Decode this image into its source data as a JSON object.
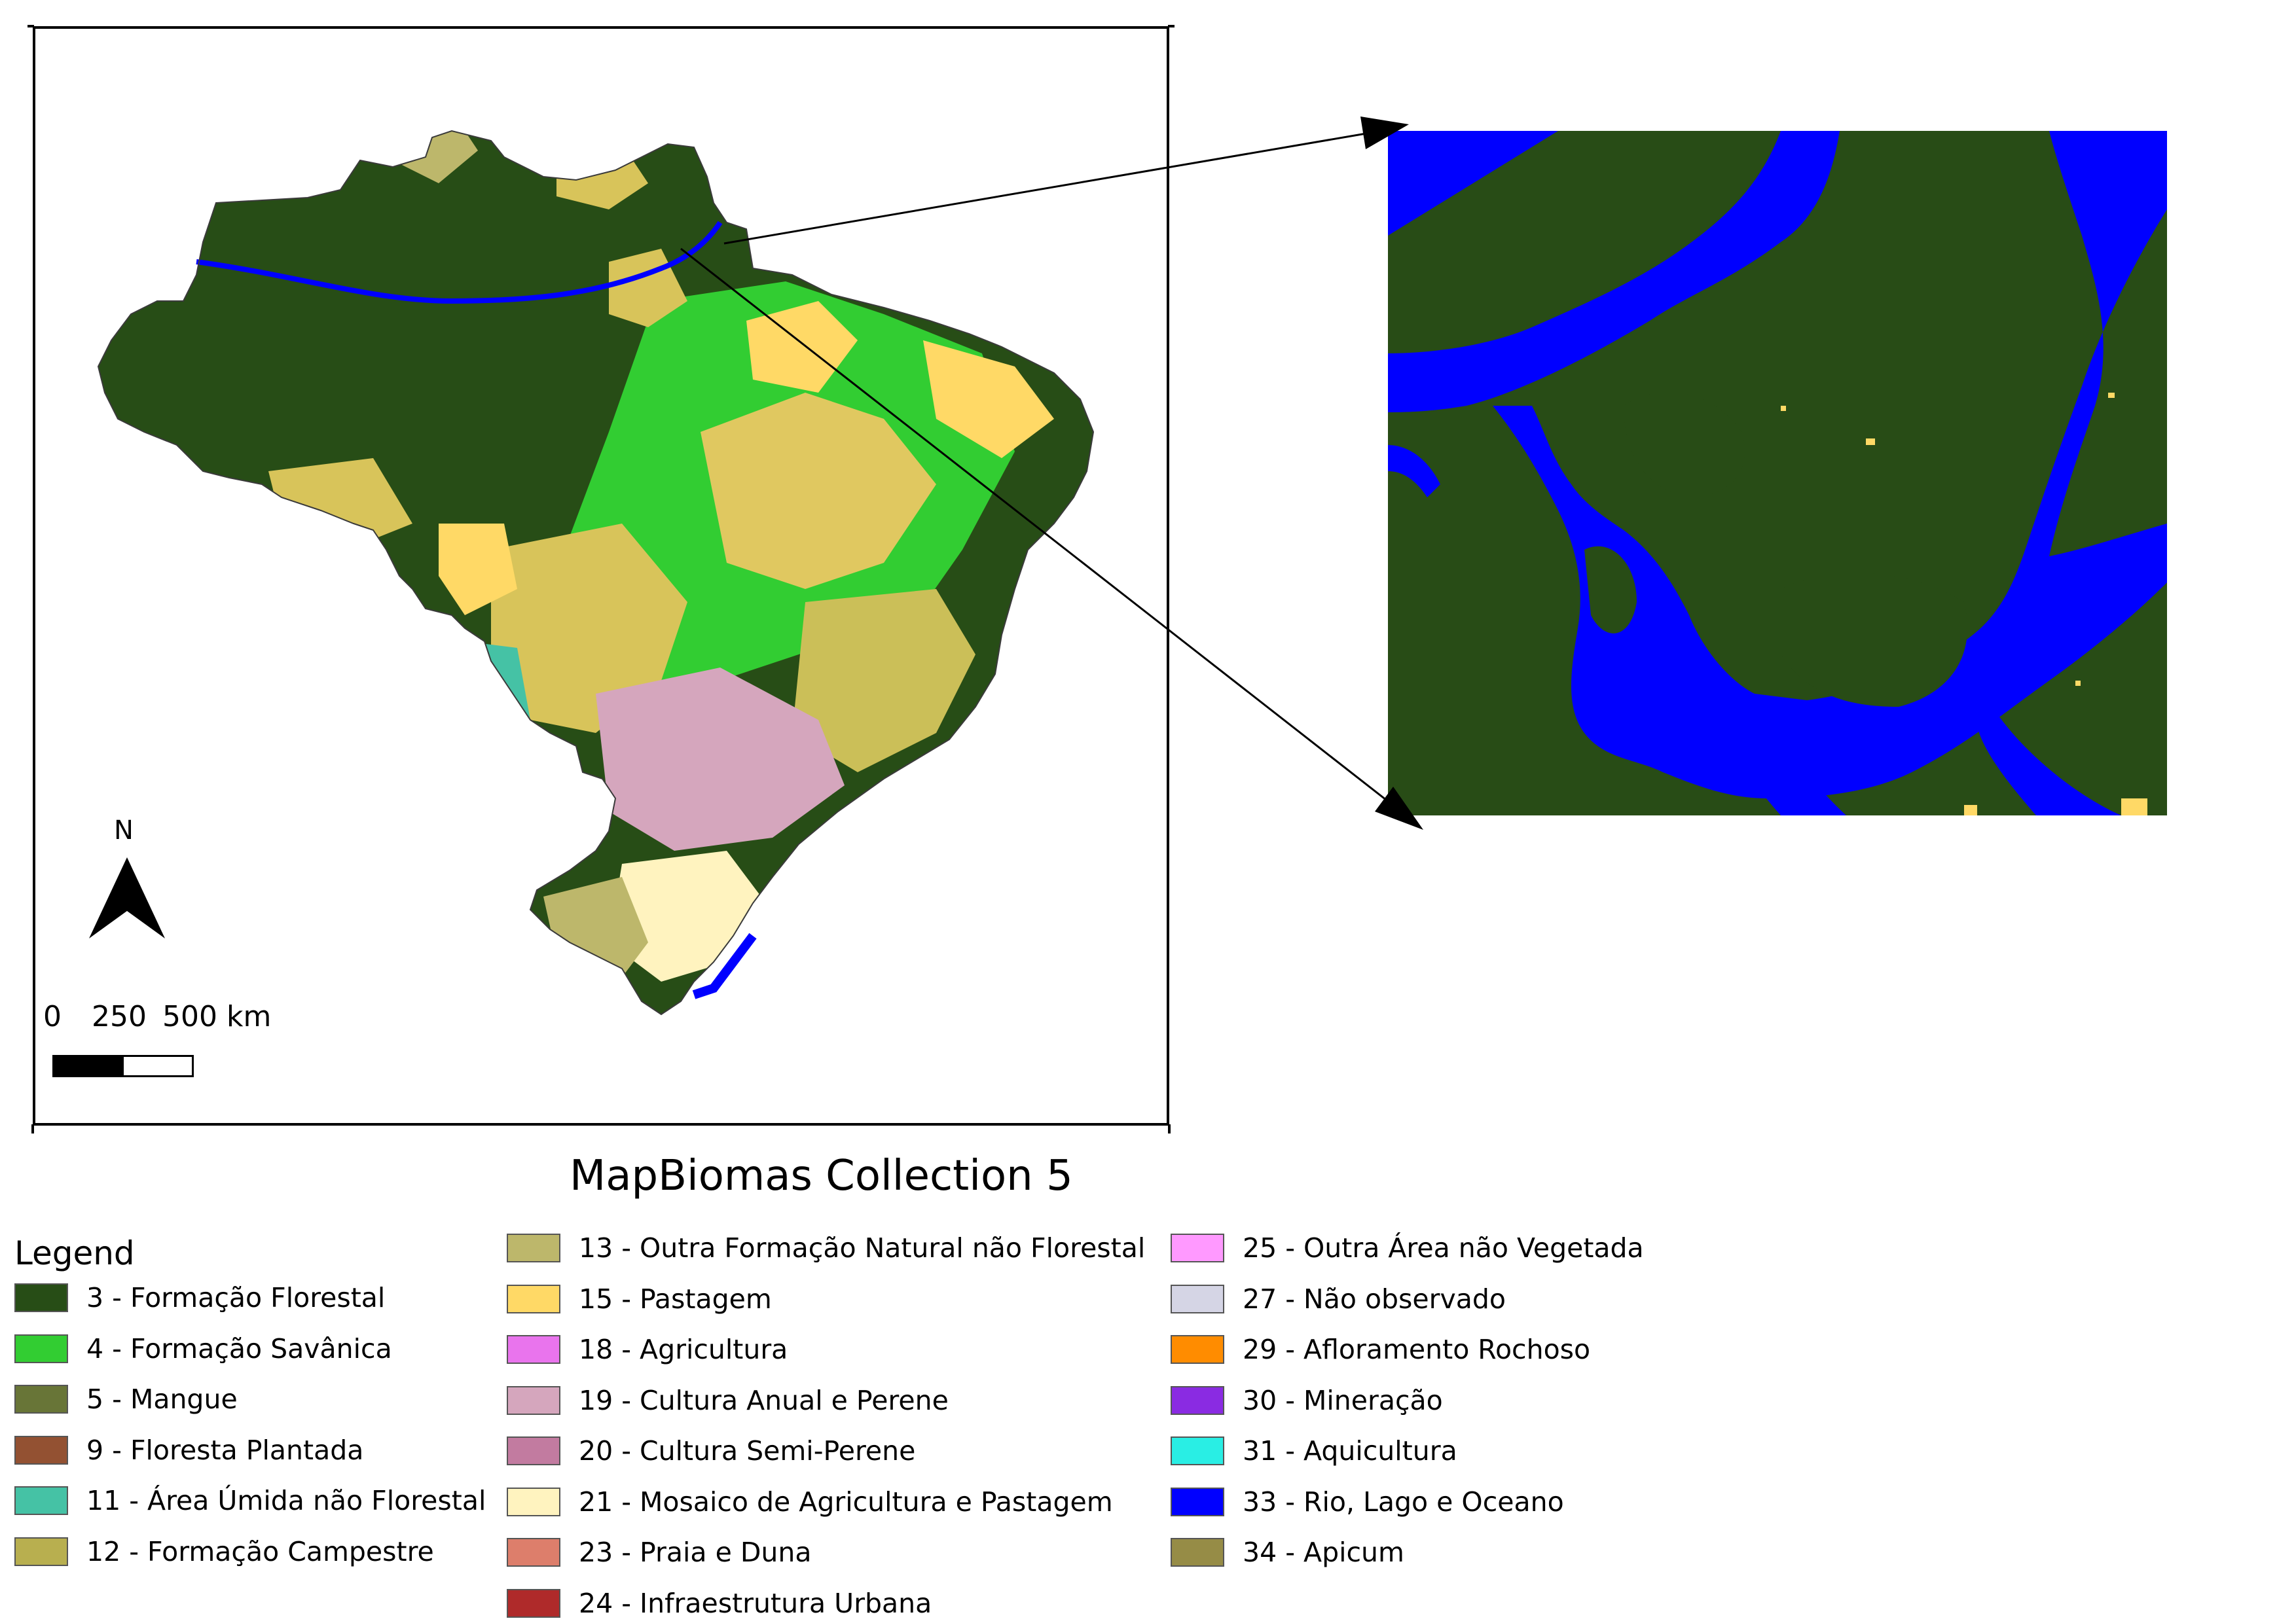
{
  "map": {
    "scalebar": {
      "ticks": [
        "0",
        "250",
        "500 km"
      ]
    },
    "north": "N"
  },
  "title": "MapBiomas Collection 5",
  "legend": {
    "heading": "Legend",
    "columns": [
      [
        {
          "label": "3 - Formação Florestal",
          "color": "#274d16"
        },
        {
          "label": "4 - Formação Savânica",
          "color": "#32cd32"
        },
        {
          "label": "5 - Mangue",
          "color": "#687537"
        },
        {
          "label": "9 - Floresta Plantada",
          "color": "#935132"
        },
        {
          "label": "11 - Área Úmida não Florestal",
          "color": "#45c2a5"
        },
        {
          "label": "12 - Formação Campestre",
          "color": "#b8af4f"
        }
      ],
      [
        {
          "label": "13 - Outra Formação Natural não Florestal",
          "color": "#bdb76b"
        },
        {
          "label": "15 - Pastagem",
          "color": "#ffd966"
        },
        {
          "label": "18 - Agricultura",
          "color": "#e974ed"
        },
        {
          "label": "19 - Cultura Anual e Perene",
          "color": "#d5a6bd"
        },
        {
          "label": "20 - Cultura Semi-Perene",
          "color": "#c27ba0"
        },
        {
          "label": "21 - Mosaico de Agricultura e Pastagem",
          "color": "#fff3bf"
        },
        {
          "label": "23 - Praia e Duna",
          "color": "#dd7e6b"
        },
        {
          "label": "24 - Infraestrutura Urbana",
          "color": "#af2a2a"
        }
      ],
      [
        {
          "label": "25 - Outra Área não Vegetada",
          "color": "#ff99ff"
        },
        {
          "label": "27 - Não observado",
          "color": "#d5d5e5"
        },
        {
          "label": "29 - Afloramento Rochoso",
          "color": "#ff8c00"
        },
        {
          "label": "30 - Mineração",
          "color": "#8a2be2"
        },
        {
          "label": "31 - Aquicultura",
          "color": "#29eee4"
        },
        {
          "label": "33 - Rio, Lago e Oceano",
          "color": "#0000ff"
        },
        {
          "label": "34 - Apicum",
          "color": "#968c46"
        }
      ]
    ]
  }
}
